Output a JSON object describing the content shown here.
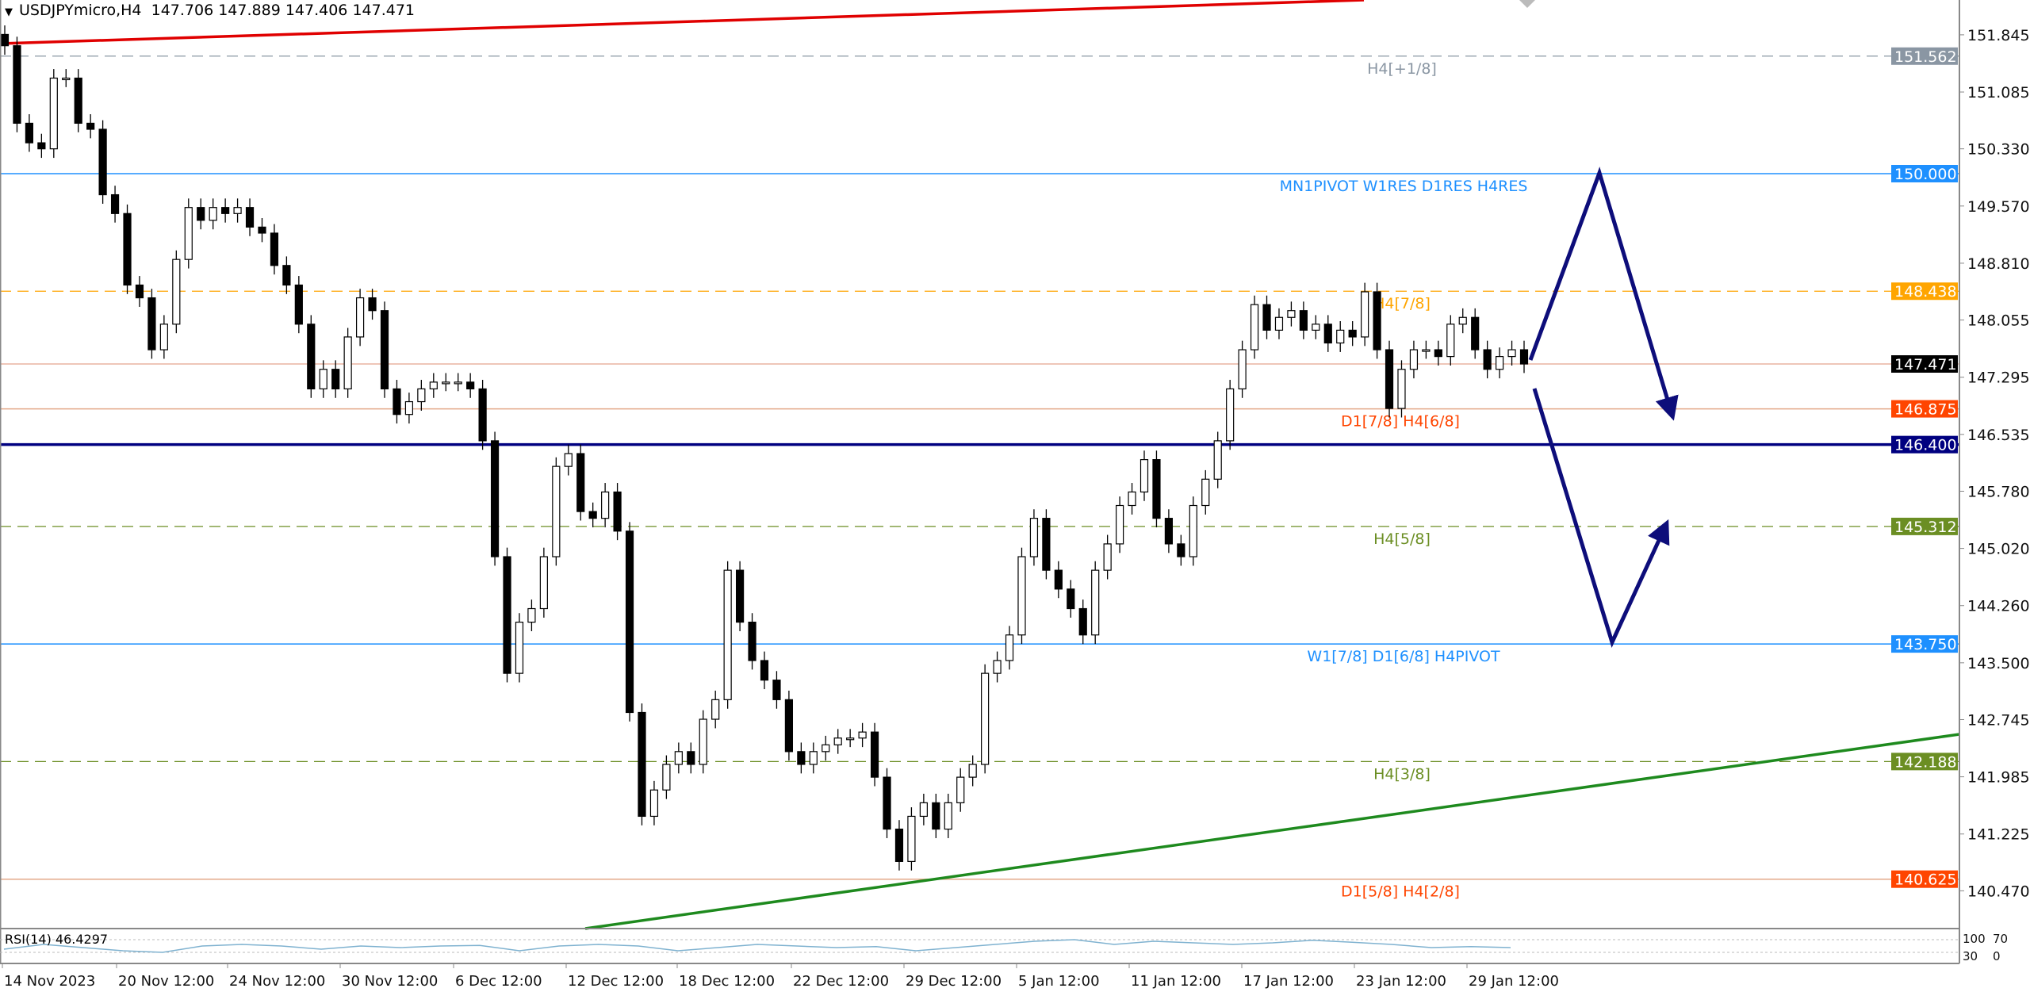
{
  "header": {
    "symbol": "USDJPYmicro,H4",
    "ohlc": "147.706 147.889 147.406 147.471"
  },
  "chart_data": {
    "type": "candlestick",
    "symbol": "USDJPYmicro",
    "timeframe": "H4",
    "ylim": [
      140.2,
      152.2
    ],
    "y_ticks": [
      "151.845",
      "151.085",
      "150.330",
      "149.570",
      "148.810",
      "148.055",
      "147.295",
      "146.535",
      "145.780",
      "145.020",
      "144.260",
      "143.500",
      "142.745",
      "141.985",
      "141.225",
      "140.470"
    ],
    "x_ticks": [
      "14 Nov 2023",
      "20 Nov 12:00",
      "24 Nov 12:00",
      "30 Nov 12:00",
      "6 Dec 12:00",
      "12 Dec 12:00",
      "18 Dec 12:00",
      "22 Dec 12:00",
      "29 Dec 12:00",
      "5 Jan 12:00",
      "11 Jan 12:00",
      "17 Jan 12:00",
      "23 Jan 12:00",
      "29 Jan 12:00"
    ],
    "first_open": 151.85,
    "closes_approx": [
      151.7,
      150.67,
      150.41,
      150.33,
      151.27,
      151.27,
      150.67,
      150.59,
      149.72,
      149.47,
      148.52,
      148.35,
      147.66,
      148.0,
      148.86,
      149.55,
      149.38,
      149.55,
      149.47,
      149.55,
      149.29,
      149.21,
      148.78,
      148.52,
      148.0,
      147.14,
      147.4,
      147.14,
      147.83,
      148.35,
      148.18,
      147.14,
      146.8,
      146.97,
      147.14,
      147.23,
      147.23,
      147.23,
      147.14,
      146.45,
      144.91,
      143.36,
      144.04,
      144.22,
      144.91,
      146.11,
      146.28,
      145.51,
      145.42,
      145.77,
      145.25,
      142.84,
      141.46,
      141.81,
      142.15,
      142.32,
      142.15,
      142.75,
      143.01,
      144.73,
      144.04,
      143.53,
      143.27,
      143.01,
      142.32,
      142.15,
      142.32,
      142.41,
      142.5,
      142.5,
      142.58,
      141.98,
      141.29,
      140.86,
      141.46,
      141.64,
      141.29,
      141.64,
      141.98,
      142.15,
      143.36,
      143.53,
      143.87,
      144.91,
      145.42,
      144.73,
      144.48,
      144.22,
      143.87,
      144.73,
      145.08,
      145.59,
      145.77,
      146.2,
      145.42,
      145.08,
      144.91,
      145.59,
      145.94,
      146.45,
      147.14,
      147.66,
      148.26,
      147.92,
      148.09,
      148.18,
      147.92,
      148.0,
      147.75,
      147.92,
      147.83,
      148.43,
      147.66,
      146.88,
      147.4,
      147.66,
      147.66,
      147.57,
      148.0,
      148.09,
      147.66,
      147.4,
      147.57,
      147.66,
      147.471
    ],
    "levels": [
      {
        "price": 151.562,
        "label": "H4[+1/8]",
        "value_text": "151.562",
        "color": "#8a96a3",
        "style": "dashed"
      },
      {
        "price": 150.0,
        "label": "MN1PIVOT W1RES D1RES H4RES",
        "value_text": "150.000",
        "color": "#1e90ff",
        "style": "solid"
      },
      {
        "price": 148.438,
        "label": "H4[7/8]",
        "value_text": "148.438",
        "color": "#ffa500",
        "style": "dashed"
      },
      {
        "price": 147.471,
        "label": "",
        "value_text": "147.471",
        "color": "#000000",
        "style": "current"
      },
      {
        "price": 146.875,
        "label": "D1[7/8] H4[6/8]",
        "value_text": "146.875",
        "color": "#ff4500",
        "style": "solid"
      },
      {
        "price": 146.4,
        "label": "",
        "value_text": "146.400",
        "color": "#000080",
        "style": "thick"
      },
      {
        "price": 145.312,
        "label": "H4[5/8]",
        "value_text": "145.312",
        "color": "#6b8e23",
        "style": "dashed"
      },
      {
        "price": 143.75,
        "label": "W1[7/8] D1[6/8] H4PIVOT",
        "value_text": "143.750",
        "color": "#1e90ff",
        "style": "solid"
      },
      {
        "price": 142.188,
        "label": "H4[3/8]",
        "value_text": "142.188",
        "color": "#6b8e23",
        "style": "dashed"
      },
      {
        "price": 140.625,
        "label": "D1[5/8] H4[2/8]",
        "value_text": "140.625",
        "color": "#ff4500",
        "style": "solid"
      }
    ],
    "trendlines": [
      {
        "name": "resistance",
        "color": "#e00000"
      },
      {
        "name": "support",
        "color": "#1e8a1e"
      }
    ],
    "forecast_arrows_color": "#0d0d7a",
    "rsi": {
      "label": "RSI(14) 46.4297",
      "levels": [
        70,
        30
      ],
      "axis_labels": [
        "100",
        "70",
        "30",
        "0"
      ],
      "color": "#7fb2d0",
      "values_approx": [
        40,
        55,
        45,
        35,
        30,
        50,
        55,
        50,
        40,
        50,
        45,
        50,
        52,
        35,
        50,
        55,
        50,
        35,
        45,
        55,
        50,
        45,
        48,
        35,
        45,
        55,
        65,
        70,
        55,
        65,
        60,
        55,
        60,
        68,
        62,
        55,
        45,
        48,
        45
      ]
    }
  }
}
